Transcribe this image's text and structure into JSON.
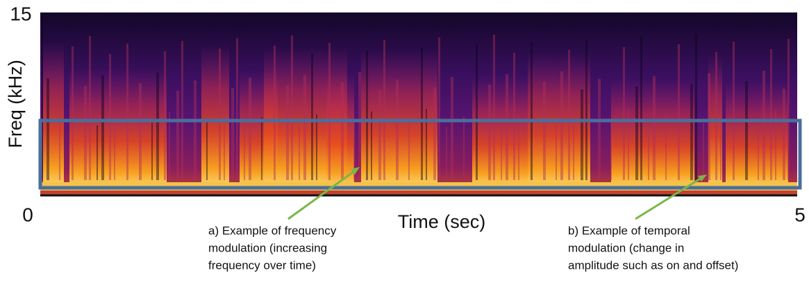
{
  "figure": {
    "y_axis": {
      "label": "Freq (kHz)",
      "top_tick": 15
    },
    "origin_tick": 0,
    "x_axis": {
      "label": "Time (sec)",
      "end_tick": 5
    },
    "annotations": [
      {
        "lines": [
          "a) Example of frequency",
          "modulation (increasing",
          "frequency over time)"
        ]
      },
      {
        "lines": [
          "b) Example of temporal",
          "modulation (change in",
          "amplitude such as on and offset)"
        ]
      }
    ]
  }
}
